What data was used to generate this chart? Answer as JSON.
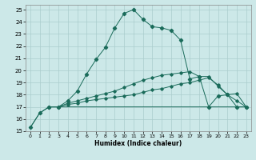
{
  "xlabel": "Humidex (Indice chaleur)",
  "bg_color": "#cce8e8",
  "grid_color": "#aacccc",
  "line_color": "#1a6b5a",
  "xlim_min": -0.5,
  "xlim_max": 23.5,
  "ylim_min": 15,
  "ylim_max": 25.4,
  "xticks": [
    0,
    1,
    2,
    3,
    4,
    5,
    6,
    7,
    8,
    9,
    10,
    11,
    12,
    13,
    14,
    15,
    16,
    17,
    18,
    19,
    20,
    21,
    22,
    23
  ],
  "yticks": [
    15,
    16,
    17,
    18,
    19,
    20,
    21,
    22,
    23,
    24,
    25
  ],
  "line1_x": [
    0,
    1,
    2,
    3,
    4,
    5,
    6,
    7,
    8,
    9,
    10,
    11,
    12,
    13,
    14,
    15,
    16,
    17,
    18,
    19,
    20,
    21,
    22,
    23
  ],
  "line1_y": [
    15.3,
    16.5,
    17.0,
    17.0,
    17.5,
    18.3,
    19.7,
    20.9,
    21.9,
    23.5,
    24.7,
    25.0,
    24.2,
    23.6,
    23.5,
    23.3,
    22.5,
    19.3,
    19.5,
    17.0,
    17.9,
    18.0,
    17.0,
    17.0
  ],
  "line2_x": [
    2,
    3,
    4,
    5,
    6,
    7,
    8,
    9,
    10,
    11,
    12,
    13,
    14,
    15,
    16,
    17,
    18,
    19,
    20,
    21,
    22,
    23
  ],
  "line2_y": [
    17.0,
    17.0,
    17.2,
    17.3,
    17.5,
    17.6,
    17.7,
    17.8,
    17.9,
    18.0,
    18.2,
    18.4,
    18.5,
    18.7,
    18.9,
    19.0,
    19.2,
    19.4,
    18.8,
    18.0,
    18.1,
    17.0
  ],
  "line3_x": [
    0,
    1,
    2,
    3,
    4,
    5,
    6,
    7,
    8,
    9,
    10,
    11,
    12,
    13,
    14,
    15,
    16,
    17,
    18,
    19,
    20,
    21,
    22,
    23
  ],
  "line3_y": [
    15.3,
    16.5,
    17.0,
    17.0,
    17.0,
    17.0,
    17.0,
    17.0,
    17.0,
    17.0,
    17.0,
    17.0,
    17.0,
    17.0,
    17.0,
    17.0,
    17.0,
    17.0,
    17.0,
    17.0,
    17.0,
    17.0,
    17.0,
    17.0
  ],
  "line4_x": [
    2,
    3,
    4,
    5,
    6,
    7,
    8,
    9,
    10,
    11,
    12,
    13,
    14,
    15,
    16,
    17,
    18,
    19,
    20,
    21,
    22,
    23
  ],
  "line4_y": [
    17.0,
    17.0,
    17.3,
    17.5,
    17.7,
    17.9,
    18.1,
    18.3,
    18.6,
    18.9,
    19.2,
    19.4,
    19.6,
    19.7,
    19.8,
    19.9,
    19.5,
    19.5,
    18.7,
    18.0,
    17.5,
    17.0
  ]
}
